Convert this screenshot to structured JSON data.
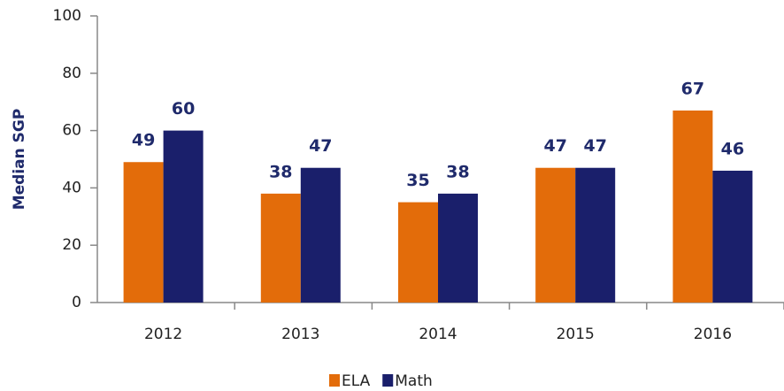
{
  "chart_data": {
    "type": "bar",
    "y_label": "Median SGP",
    "categories": [
      "2012",
      "2013",
      "2014",
      "2015",
      "2016"
    ],
    "series": [
      {
        "name": "ELA",
        "color": "#e36c0a",
        "values": [
          49,
          38,
          35,
          47,
          67
        ]
      },
      {
        "name": "Math",
        "color": "#1a1f6b",
        "values": [
          60,
          47,
          38,
          47,
          46
        ]
      }
    ],
    "ylim": [
      0,
      100
    ],
    "yticks": [
      0,
      20,
      40,
      60,
      80,
      100
    ],
    "legend": "bottom"
  }
}
